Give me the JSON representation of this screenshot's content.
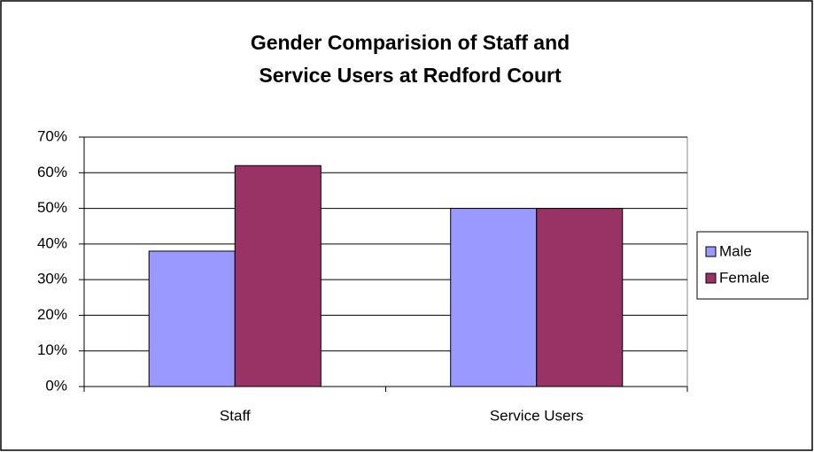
{
  "chart_data": {
    "type": "bar",
    "title": "Gender Comparision of Staff and Service Users at Redford Court",
    "categories": [
      "Staff",
      "Service Users"
    ],
    "series": [
      {
        "name": "Male",
        "color": "#9999ff",
        "values": [
          38,
          50
        ]
      },
      {
        "name": "Female",
        "color": "#993366",
        "values": [
          62,
          50
        ]
      }
    ],
    "ylim": [
      0,
      70
    ],
    "yticks": [
      {
        "value": 0,
        "label": "0%"
      },
      {
        "value": 10,
        "label": "10%"
      },
      {
        "value": 20,
        "label": "20%"
      },
      {
        "value": 30,
        "label": "30%"
      },
      {
        "value": 40,
        "label": "40%"
      },
      {
        "value": 50,
        "label": "50%"
      },
      {
        "value": 60,
        "label": "60%"
      },
      {
        "value": 70,
        "label": "70%"
      }
    ],
    "grid": true,
    "legend": "right"
  }
}
